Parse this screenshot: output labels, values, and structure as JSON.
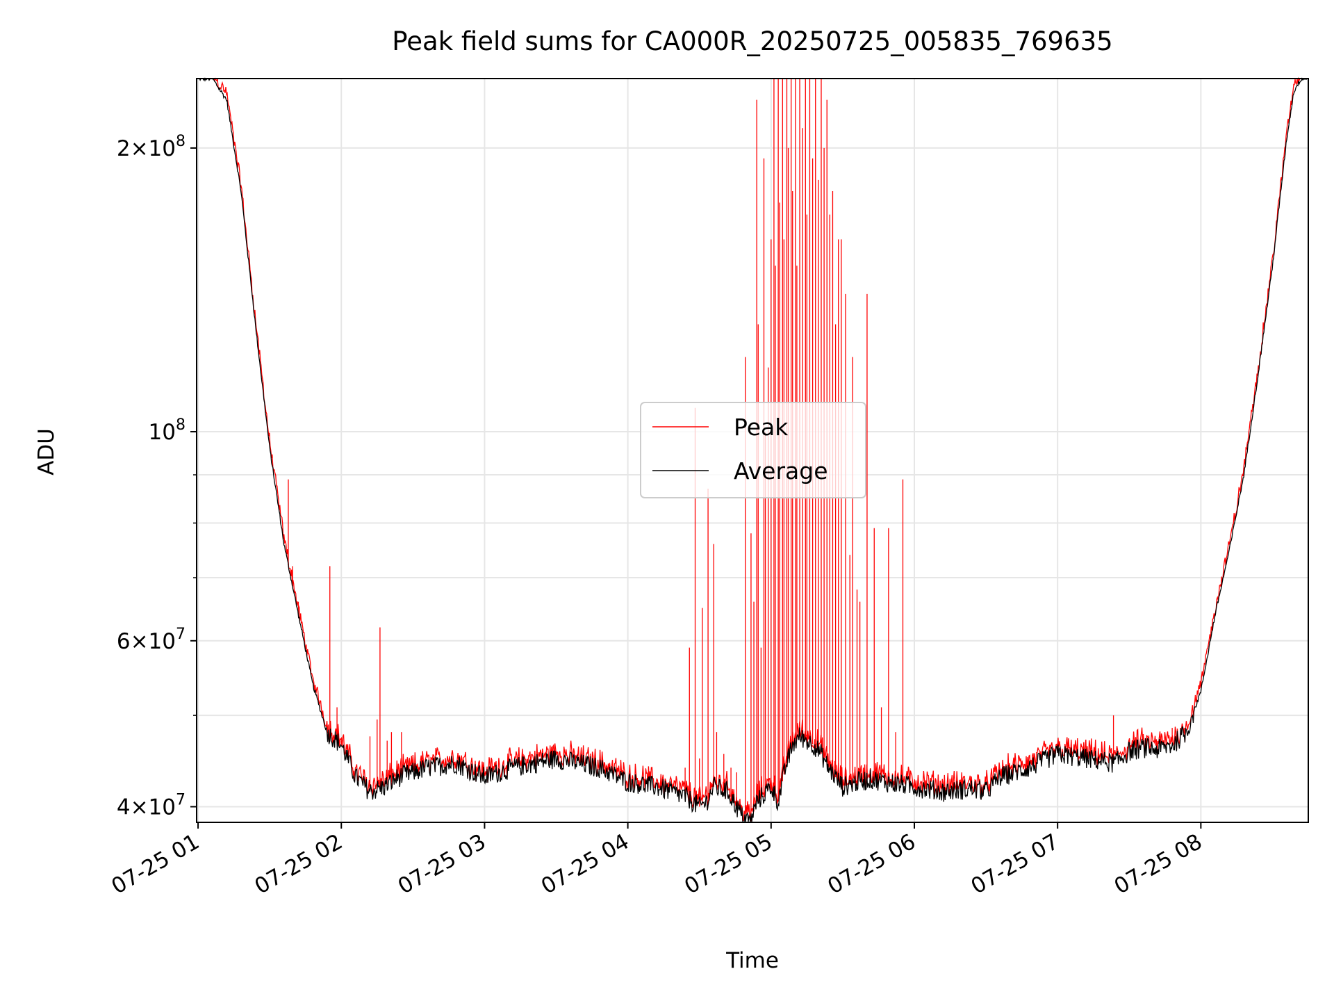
{
  "chart_data": {
    "type": "line",
    "title": "Peak field sums for CA000R_20250725_005835_769635",
    "xlabel": "Time",
    "ylabel": "ADU",
    "x_ticks": [
      "07-25 01",
      "07-25 02",
      "07-25 03",
      "07-25 04",
      "07-25 05",
      "07-25 06",
      "07-25 07",
      "07-25 08"
    ],
    "x_tick_hours": [
      1,
      2,
      3,
      4,
      5,
      6,
      7,
      8
    ],
    "xlim_hours": [
      0.99,
      8.75
    ],
    "ylim": [
      38500000,
      237000000
    ],
    "y_scale": "log",
    "y_major_ticks": [
      {
        "value": 40000000,
        "mantissa": "4",
        "base": "10",
        "exp": "7"
      },
      {
        "value": 60000000,
        "mantissa": "6",
        "base": "10",
        "exp": "7"
      },
      {
        "value": 100000000,
        "mantissa": "",
        "base": "10",
        "exp": "8"
      },
      {
        "value": 200000000,
        "mantissa": "2",
        "base": "10",
        "exp": "8"
      }
    ],
    "y_minor_ticks": [
      50000000,
      70000000,
      80000000,
      90000000
    ],
    "grid": true,
    "legend_position": "center",
    "series": [
      {
        "name": "Peak",
        "color": "#ff0000"
      },
      {
        "name": "Average",
        "color": "#000000"
      }
    ],
    "average_baseline": {
      "x_hours": [
        1.0,
        1.1,
        1.2,
        1.3,
        1.4,
        1.5,
        1.6,
        1.7,
        1.8,
        1.9,
        2.0,
        2.1,
        2.2,
        2.3,
        2.4,
        2.6,
        2.8,
        3.0,
        3.2,
        3.5,
        3.8,
        4.0,
        4.2,
        4.4,
        4.5,
        4.55,
        4.6,
        4.7,
        4.8,
        4.86,
        4.9,
        5.0,
        5.05,
        5.1,
        5.15,
        5.2,
        5.25,
        5.3,
        5.35,
        5.4,
        5.5,
        5.6,
        5.7,
        5.8,
        6.0,
        6.2,
        6.4,
        6.5,
        6.6,
        6.8,
        7.0,
        7.2,
        7.4,
        7.5,
        7.6,
        7.7,
        7.8,
        7.9,
        8.0,
        8.1,
        8.2,
        8.3,
        8.4,
        8.5,
        8.6,
        8.65,
        8.7,
        8.75
      ],
      "adu": [
        237000000,
        237000000,
        225000000,
        180000000,
        130000000,
        96000000,
        76000000,
        64000000,
        54000000,
        48000000,
        46500000,
        43000000,
        41500000,
        42000000,
        43000000,
        44000000,
        44500000,
        43000000,
        44000000,
        45000000,
        44000000,
        42500000,
        42000000,
        41000000,
        40000000,
        40500000,
        42000000,
        41500000,
        39000000,
        38600000,
        40500000,
        42000000,
        40500000,
        44000000,
        46500000,
        47500000,
        47000000,
        46500000,
        45500000,
        44000000,
        42000000,
        42500000,
        42800000,
        42500000,
        42000000,
        41500000,
        41800000,
        41500000,
        43000000,
        44000000,
        45500000,
        45000000,
        44500000,
        45800000,
        46200000,
        46000000,
        46500000,
        48000000,
        53000000,
        64000000,
        75000000,
        90000000,
        115000000,
        150000000,
        205000000,
        230000000,
        237000000,
        237000000
      ]
    },
    "peak_spikes": [
      {
        "x_hours": 1.63,
        "adu": 89000000
      },
      {
        "x_hours": 1.66,
        "adu": 72000000
      },
      {
        "x_hours": 1.7,
        "adu": 66000000
      },
      {
        "x_hours": 1.92,
        "adu": 72000000
      },
      {
        "x_hours": 1.97,
        "adu": 51000000
      },
      {
        "x_hours": 2.0,
        "adu": 47000000
      },
      {
        "x_hours": 2.2,
        "adu": 47500000
      },
      {
        "x_hours": 2.25,
        "adu": 49500000
      },
      {
        "x_hours": 2.27,
        "adu": 62000000
      },
      {
        "x_hours": 2.32,
        "adu": 47000000
      },
      {
        "x_hours": 2.35,
        "adu": 48000000
      },
      {
        "x_hours": 2.42,
        "adu": 48000000
      },
      {
        "x_hours": 4.4,
        "adu": 44000000
      },
      {
        "x_hours": 4.43,
        "adu": 59000000
      },
      {
        "x_hours": 4.47,
        "adu": 106000000
      },
      {
        "x_hours": 4.5,
        "adu": 45000000
      },
      {
        "x_hours": 4.52,
        "adu": 65000000
      },
      {
        "x_hours": 4.56,
        "adu": 87000000
      },
      {
        "x_hours": 4.6,
        "adu": 76000000
      },
      {
        "x_hours": 4.62,
        "adu": 48000000
      },
      {
        "x_hours": 4.67,
        "adu": 45500000
      },
      {
        "x_hours": 4.72,
        "adu": 44000000
      },
      {
        "x_hours": 4.76,
        "adu": 43500000
      },
      {
        "x_hours": 4.82,
        "adu": 120000000
      },
      {
        "x_hours": 4.86,
        "adu": 78000000
      },
      {
        "x_hours": 4.88,
        "adu": 66000000
      },
      {
        "x_hours": 4.9,
        "adu": 225000000
      },
      {
        "x_hours": 4.91,
        "adu": 130000000
      },
      {
        "x_hours": 4.93,
        "adu": 59000000
      },
      {
        "x_hours": 4.95,
        "adu": 195000000
      },
      {
        "x_hours": 4.96,
        "adu": 100000000
      },
      {
        "x_hours": 4.98,
        "adu": 117000000
      },
      {
        "x_hours": 5.0,
        "adu": 160000000
      },
      {
        "x_hours": 5.02,
        "adu": 237000000
      },
      {
        "x_hours": 5.03,
        "adu": 150000000
      },
      {
        "x_hours": 5.05,
        "adu": 237000000
      },
      {
        "x_hours": 5.06,
        "adu": 175000000
      },
      {
        "x_hours": 5.08,
        "adu": 237000000
      },
      {
        "x_hours": 5.09,
        "adu": 160000000
      },
      {
        "x_hours": 5.11,
        "adu": 237000000
      },
      {
        "x_hours": 5.12,
        "adu": 200000000
      },
      {
        "x_hours": 5.14,
        "adu": 237000000
      },
      {
        "x_hours": 5.15,
        "adu": 180000000
      },
      {
        "x_hours": 5.17,
        "adu": 237000000
      },
      {
        "x_hours": 5.18,
        "adu": 150000000
      },
      {
        "x_hours": 5.2,
        "adu": 237000000
      },
      {
        "x_hours": 5.22,
        "adu": 210000000
      },
      {
        "x_hours": 5.24,
        "adu": 237000000
      },
      {
        "x_hours": 5.25,
        "adu": 170000000
      },
      {
        "x_hours": 5.27,
        "adu": 237000000
      },
      {
        "x_hours": 5.29,
        "adu": 195000000
      },
      {
        "x_hours": 5.31,
        "adu": 237000000
      },
      {
        "x_hours": 5.33,
        "adu": 185000000
      },
      {
        "x_hours": 5.35,
        "adu": 237000000
      },
      {
        "x_hours": 5.37,
        "adu": 200000000
      },
      {
        "x_hours": 5.39,
        "adu": 225000000
      },
      {
        "x_hours": 5.41,
        "adu": 170000000
      },
      {
        "x_hours": 5.43,
        "adu": 180000000
      },
      {
        "x_hours": 5.45,
        "adu": 130000000
      },
      {
        "x_hours": 5.47,
        "adu": 160000000
      },
      {
        "x_hours": 5.49,
        "adu": 160000000
      },
      {
        "x_hours": 5.52,
        "adu": 140000000
      },
      {
        "x_hours": 5.55,
        "adu": 74000000
      },
      {
        "x_hours": 5.57,
        "adu": 120000000
      },
      {
        "x_hours": 5.6,
        "adu": 68000000
      },
      {
        "x_hours": 5.62,
        "adu": 66000000
      },
      {
        "x_hours": 5.67,
        "adu": 140000000
      },
      {
        "x_hours": 5.72,
        "adu": 79000000
      },
      {
        "x_hours": 5.77,
        "adu": 51000000
      },
      {
        "x_hours": 5.82,
        "adu": 79000000
      },
      {
        "x_hours": 5.87,
        "adu": 48000000
      },
      {
        "x_hours": 5.92,
        "adu": 89000000
      },
      {
        "x_hours": 7.39,
        "adu": 50000000
      },
      {
        "x_hours": 7.8,
        "adu": 48500000
      }
    ]
  }
}
